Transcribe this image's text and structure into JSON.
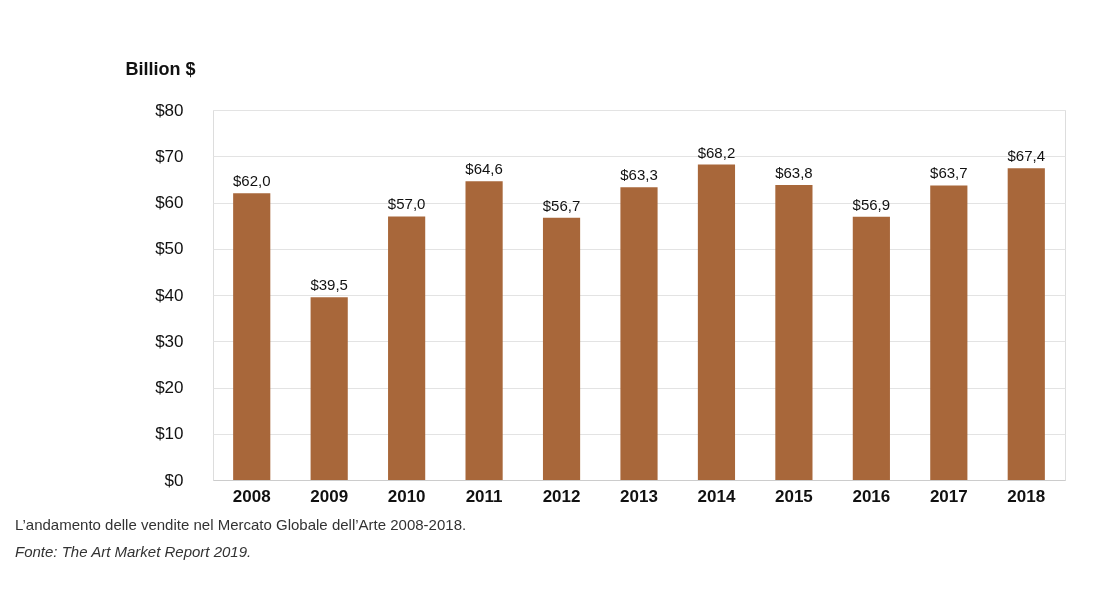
{
  "chart_data": {
    "type": "bar",
    "ylabel": "Billion $",
    "categories": [
      "2008",
      "2009",
      "2010",
      "2011",
      "2012",
      "2013",
      "2014",
      "2015",
      "2016",
      "2017",
      "2018"
    ],
    "values": [
      62.0,
      39.5,
      57.0,
      64.6,
      56.7,
      63.3,
      68.2,
      63.8,
      56.9,
      63.7,
      67.4
    ],
    "value_labels": [
      "$62,0",
      "$39,5",
      "$57,0",
      "$64,6",
      "$56,7",
      "$63,3",
      "$68,2",
      "$63,8",
      "$56,9",
      "$63,7",
      "$67,4"
    ],
    "color": "#a8673a",
    "ylim": [
      0,
      80
    ],
    "yticks": [
      {
        "value": 0,
        "label": "$0"
      },
      {
        "value": 10,
        "label": "$10"
      },
      {
        "value": 20,
        "label": "$20"
      },
      {
        "value": 30,
        "label": "$30"
      },
      {
        "value": 40,
        "label": "$40"
      },
      {
        "value": 50,
        "label": "$50"
      },
      {
        "value": 60,
        "label": "$60"
      },
      {
        "value": 70,
        "label": "$70"
      },
      {
        "value": 80,
        "label": "$80"
      }
    ],
    "grid": "y",
    "annotations": [
      "L’andamento delle vendite nel Mercato Globale dell’Arte 2008-2018.",
      "Fonte: The Art Market Report 2019."
    ]
  }
}
